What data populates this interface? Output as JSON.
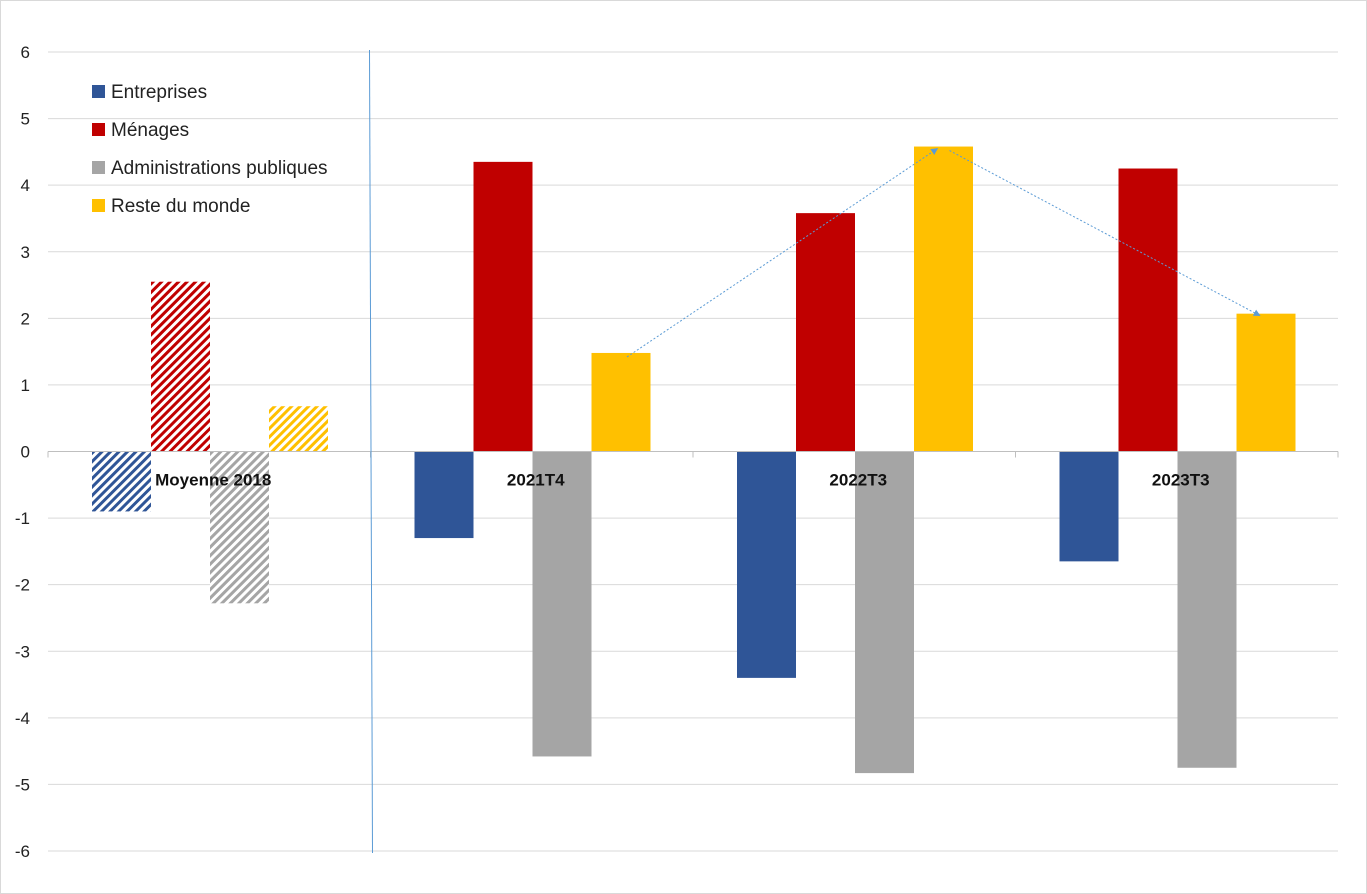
{
  "chart_data": {
    "type": "bar",
    "title": "",
    "xlabel": "",
    "ylabel": "",
    "ylim": [
      -6,
      6
    ],
    "yticks": [
      -6,
      -5,
      -4,
      -3,
      -2,
      -1,
      0,
      1,
      2,
      3,
      4,
      5,
      6
    ],
    "grid": true,
    "legend_position": "top-left",
    "categories": [
      "Moyenne 2018",
      "2021T4",
      "2022T3",
      "2023T3"
    ],
    "hatched_categories": [
      "Moyenne 2018"
    ],
    "series": [
      {
        "name": "Entreprises",
        "color": "#2f5597",
        "values": [
          -0.9,
          -1.3,
          -3.4,
          -1.65
        ]
      },
      {
        "name": "Ménages",
        "color": "#c00000",
        "values": [
          2.55,
          4.35,
          3.58,
          4.25
        ]
      },
      {
        "name": "Administrations publiques",
        "color": "#a5a5a5",
        "values": [
          -2.28,
          -4.58,
          -4.83,
          -4.75
        ]
      },
      {
        "name": "Reste du monde",
        "color": "#ffc000",
        "values": [
          0.68,
          1.48,
          4.58,
          2.07
        ]
      }
    ],
    "annotations": {
      "arrow_series": "Reste du monde",
      "arrow_path": [
        "2021T4",
        "2022T3",
        "2023T3"
      ],
      "arrow_color": "#5b9bd5",
      "separator_after_category": "Moyenne 2018"
    }
  }
}
